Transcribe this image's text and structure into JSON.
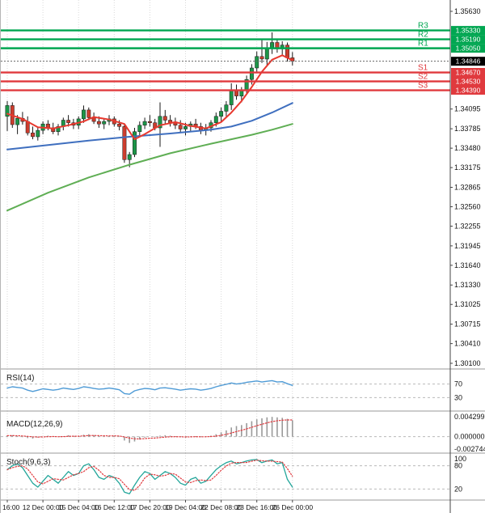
{
  "colors": {
    "bull": "#1c9648",
    "bear": "#cd3d2e",
    "wick": "#1a1a1a",
    "ma_fast_red": "#e8392f",
    "ma_mid_blue": "#3f6fbf",
    "ma_slow_green": "#5fae54",
    "resistance": "#00a651",
    "support": "#e03a3e",
    "current_badge": "#000000",
    "rsi_line": "#4f9bd6",
    "macd_hist": "#9a9a9a",
    "macd_signal": "#e03a3e",
    "stoch_main": "#23a69a",
    "stoch_signal": "#e03a3e",
    "grid": "#d9d9d9",
    "level_dash": "#b9b9b9",
    "divider": "#9a9a9a",
    "axis_line": "#444444",
    "tick_text": "#111111"
  },
  "price_axis": {
    "current_price": "1.34846",
    "ticks": [
      "1.35630",
      "1.34095",
      "1.33785",
      "1.33480",
      "1.33175",
      "1.32865",
      "1.32560",
      "1.32255",
      "1.31945",
      "1.31640",
      "1.31330",
      "1.31025",
      "1.30715",
      "1.30410",
      "1.30100"
    ]
  },
  "indicators": {
    "rsi": {
      "label": "RSI(14)"
    },
    "macd": {
      "label": "MACD(12,26,9)"
    },
    "stoch": {
      "label": "Stoch(9,6,3)"
    }
  },
  "chart_data": {
    "type": "candlestick",
    "title": "",
    "xlabel": "",
    "ylabel": "",
    "y_axis": {
      "min": 1.301,
      "max": 1.3563
    },
    "x_axis": {
      "labels": [
        "16:00",
        "12 Dec 00:00",
        "15 Dec 04:00",
        "16 Dec 12:00",
        "17 Dec 20:00",
        "19 Dec 04:00",
        "22 Dec 08:00",
        "23 Dec 16:00",
        "26 Dec 00:00"
      ],
      "label_indices": [
        0,
        7,
        14,
        21,
        28,
        35,
        42,
        49,
        56
      ]
    },
    "levels": {
      "resistance": [
        {
          "label": "R3",
          "value": 1.3533,
          "text": "1.35330"
        },
        {
          "label": "R2",
          "value": 1.3519,
          "text": "1.35190"
        },
        {
          "label": "R1",
          "value": 1.3505,
          "text": "1.35050"
        }
      ],
      "support": [
        {
          "label": "S1",
          "value": 1.3467,
          "text": "1.34670"
        },
        {
          "label": "S2",
          "value": 1.3453,
          "text": "1.34530"
        },
        {
          "label": "S3",
          "value": 1.3439,
          "text": "1.34390"
        }
      ],
      "current": 1.34846
    },
    "candles": [
      [
        1.3398,
        1.3422,
        1.3375,
        1.3415
      ],
      [
        1.3415,
        1.342,
        1.338,
        1.3385
      ],
      [
        1.3385,
        1.34,
        1.337,
        1.3395
      ],
      [
        1.3395,
        1.3405,
        1.3385,
        1.339
      ],
      [
        1.339,
        1.3398,
        1.3368,
        1.3372
      ],
      [
        1.3372,
        1.3382,
        1.3362,
        1.3366
      ],
      [
        1.3366,
        1.338,
        1.336,
        1.3376
      ],
      [
        1.3376,
        1.339,
        1.337,
        1.3386
      ],
      [
        1.3386,
        1.3392,
        1.3376,
        1.338
      ],
      [
        1.338,
        1.3388,
        1.337,
        1.3374
      ],
      [
        1.3374,
        1.3386,
        1.3368,
        1.3382
      ],
      [
        1.3382,
        1.3396,
        1.3376,
        1.3392
      ],
      [
        1.3392,
        1.34,
        1.3382,
        1.3388
      ],
      [
        1.3388,
        1.3394,
        1.3378,
        1.3384
      ],
      [
        1.3384,
        1.3398,
        1.3378,
        1.3394
      ],
      [
        1.3394,
        1.3415,
        1.3388,
        1.3408
      ],
      [
        1.3408,
        1.3412,
        1.3392,
        1.3396
      ],
      [
        1.3396,
        1.3404,
        1.3386,
        1.339
      ],
      [
        1.339,
        1.3398,
        1.338,
        1.3386
      ],
      [
        1.3386,
        1.3394,
        1.3378,
        1.339
      ],
      [
        1.339,
        1.34,
        1.3384,
        1.3394
      ],
      [
        1.3394,
        1.3398,
        1.3382,
        1.3386
      ],
      [
        1.3386,
        1.3392,
        1.3376,
        1.3382
      ],
      [
        1.3382,
        1.3386,
        1.3325,
        1.333
      ],
      [
        1.333,
        1.3342,
        1.3318,
        1.3338
      ],
      [
        1.3338,
        1.338,
        1.3334,
        1.3374
      ],
      [
        1.3374,
        1.339,
        1.3368,
        1.3384
      ],
      [
        1.3384,
        1.3396,
        1.3378,
        1.339
      ],
      [
        1.339,
        1.34,
        1.3382,
        1.3388
      ],
      [
        1.3388,
        1.3394,
        1.3376,
        1.338
      ],
      [
        1.338,
        1.342,
        1.335,
        1.3398
      ],
      [
        1.3398,
        1.3408,
        1.3386,
        1.3392
      ],
      [
        1.3392,
        1.34,
        1.3382,
        1.3388
      ],
      [
        1.3388,
        1.3396,
        1.3378,
        1.3384
      ],
      [
        1.3384,
        1.3392,
        1.3372,
        1.3378
      ],
      [
        1.3378,
        1.3388,
        1.3368,
        1.3382
      ],
      [
        1.3382,
        1.339,
        1.3374,
        1.3386
      ],
      [
        1.3386,
        1.3394,
        1.3378,
        1.3382
      ],
      [
        1.3382,
        1.3388,
        1.337,
        1.3376
      ],
      [
        1.3376,
        1.3386,
        1.3368,
        1.338
      ],
      [
        1.338,
        1.3392,
        1.3374,
        1.3388
      ],
      [
        1.3388,
        1.3404,
        1.3382,
        1.3398
      ],
      [
        1.3398,
        1.3412,
        1.339,
        1.3406
      ],
      [
        1.3406,
        1.3422,
        1.3398,
        1.3416
      ],
      [
        1.3416,
        1.345,
        1.3408,
        1.3438
      ],
      [
        1.3438,
        1.3448,
        1.3424,
        1.343
      ],
      [
        1.343,
        1.3444,
        1.342,
        1.344
      ],
      [
        1.344,
        1.3462,
        1.3434,
        1.3456
      ],
      [
        1.3456,
        1.348,
        1.3448,
        1.3474
      ],
      [
        1.3474,
        1.35,
        1.3466,
        1.3492
      ],
      [
        1.3492,
        1.3519,
        1.3482,
        1.3488
      ],
      [
        1.3488,
        1.3515,
        1.3478,
        1.3506
      ],
      [
        1.3506,
        1.353,
        1.3496,
        1.3514
      ],
      [
        1.3514,
        1.352,
        1.3498,
        1.3504
      ],
      [
        1.3504,
        1.3516,
        1.3494,
        1.351
      ],
      [
        1.351,
        1.3514,
        1.3484,
        1.349
      ],
      [
        1.349,
        1.3499,
        1.3478,
        1.34846
      ]
    ],
    "overlays": {
      "ma_fast": {
        "name": "MA fast (red)",
        "points": [
          [
            0,
            1.3402
          ],
          [
            3,
            1.3394
          ],
          [
            6,
            1.3381
          ],
          [
            9,
            1.3379
          ],
          [
            12,
            1.3384
          ],
          [
            15,
            1.339
          ],
          [
            17,
            1.3397
          ],
          [
            20,
            1.3393
          ],
          [
            23,
            1.3386
          ],
          [
            25,
            1.3362
          ],
          [
            27,
            1.337
          ],
          [
            30,
            1.3384
          ],
          [
            33,
            1.3389
          ],
          [
            36,
            1.3383
          ],
          [
            39,
            1.3379
          ],
          [
            42,
            1.3389
          ],
          [
            44,
            1.3404
          ],
          [
            46,
            1.3422
          ],
          [
            48,
            1.3444
          ],
          [
            50,
            1.3468
          ],
          [
            52,
            1.3487
          ],
          [
            54,
            1.3494
          ],
          [
            56,
            1.3486
          ]
        ]
      },
      "ma_mid": {
        "name": "MA mid (blue)",
        "points": [
          [
            0,
            1.3346
          ],
          [
            8,
            1.3353
          ],
          [
            16,
            1.336
          ],
          [
            24,
            1.3366
          ],
          [
            32,
            1.3371
          ],
          [
            40,
            1.3377
          ],
          [
            44,
            1.3382
          ],
          [
            48,
            1.3391
          ],
          [
            52,
            1.3404
          ],
          [
            56,
            1.3419
          ]
        ]
      },
      "ma_slow": {
        "name": "MA slow (green)",
        "points": [
          [
            0,
            1.325
          ],
          [
            8,
            1.3278
          ],
          [
            16,
            1.3302
          ],
          [
            24,
            1.3322
          ],
          [
            32,
            1.334
          ],
          [
            40,
            1.3355
          ],
          [
            48,
            1.3369
          ],
          [
            52,
            1.3377
          ],
          [
            56,
            1.3386
          ]
        ]
      }
    },
    "panels": {
      "rsi": {
        "range": [
          0,
          100
        ],
        "levels": [
          70,
          30
        ],
        "scale_labels": [
          "70",
          "30"
        ],
        "values": [
          58,
          62,
          60,
          58,
          52,
          48,
          52,
          56,
          54,
          52,
          54,
          58,
          56,
          54,
          57,
          62,
          60,
          57,
          55,
          56,
          58,
          56,
          53,
          42,
          40,
          50,
          54,
          57,
          56,
          53,
          58,
          59,
          57,
          55,
          52,
          54,
          56,
          55,
          52,
          54,
          57,
          62,
          66,
          69,
          73,
          70,
          72,
          75,
          77,
          79,
          76,
          78,
          80,
          76,
          77,
          71,
          66
        ]
      },
      "macd": {
        "max": 0.004299,
        "min": -0.002744,
        "scale_labels": [
          "0.004299",
          "0.000000",
          "-0.002744"
        ],
        "values": [
          0.0002,
          0.0003,
          0.0001,
          -0.0001,
          -0.0003,
          -0.0004,
          -0.0002,
          0.0,
          0.0002,
          0.0001,
          -0.0001,
          0.0001,
          0.0003,
          0.0002,
          0.0001,
          0.0004,
          0.0005,
          0.0003,
          0.0001,
          0.0,
          0.0001,
          0.0002,
          0.0,
          -0.0008,
          -0.0013,
          -0.001,
          -0.0006,
          -0.0002,
          0.0,
          -0.0001,
          0.0002,
          0.0003,
          0.0002,
          0.0001,
          -0.0001,
          -0.0002,
          0.0,
          0.0001,
          -0.0001,
          0.0,
          0.0002,
          0.0005,
          0.0009,
          0.0013,
          0.0019,
          0.0022,
          0.0024,
          0.0028,
          0.0032,
          0.0036,
          0.0038,
          0.004,
          0.0041,
          0.004,
          0.0039,
          0.0037,
          0.0034
        ]
      },
      "stoch": {
        "range": [
          0,
          100
        ],
        "levels": [
          80,
          20
        ],
        "scale_labels": [
          "100",
          "80",
          "20"
        ],
        "k": [
          70,
          80,
          85,
          75,
          55,
          35,
          25,
          40,
          55,
          45,
          35,
          50,
          65,
          55,
          60,
          80,
          85,
          70,
          50,
          45,
          55,
          50,
          35,
          12,
          8,
          30,
          50,
          65,
          60,
          45,
          55,
          65,
          60,
          50,
          35,
          30,
          45,
          50,
          35,
          40,
          55,
          70,
          80,
          88,
          92,
          85,
          88,
          92,
          95,
          96,
          88,
          92,
          95,
          85,
          88,
          45,
          25
        ]
      }
    }
  }
}
